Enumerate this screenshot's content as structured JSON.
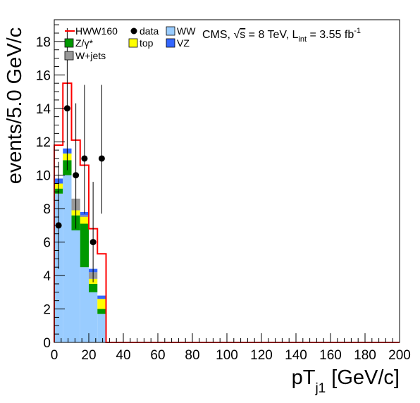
{
  "chart_data": {
    "type": "bar",
    "stacked": true,
    "bin_width": 5,
    "bin_edges_start": [
      0,
      5,
      10,
      15,
      20,
      25
    ],
    "x_range": [
      0,
      200
    ],
    "y_range": [
      0,
      19.3
    ],
    "x_ticks": [
      "0",
      "20",
      "40",
      "60",
      "80",
      "100",
      "120",
      "140",
      "160",
      "180",
      "200"
    ],
    "y_ticks": [
      "0",
      "2",
      "4",
      "6",
      "8",
      "10",
      "12",
      "14",
      "16",
      "18"
    ],
    "xlabel": {
      "main": "pT",
      "sub": "j1",
      "unit": " [GeV/c]"
    },
    "ylabel": "events/5.0 GeV/c",
    "annotation": {
      "prefix": "CMS, ",
      "sqrt_s": "s",
      "energy": " = 8 TeV, L",
      "lumi_sub": "int",
      "lumi_value": " = 3.55 fb",
      "lumi_sup": "-1"
    },
    "series": [
      {
        "name": "WW",
        "color": "#99ccff",
        "values": [
          8.9,
          10.0,
          6.7,
          4.5,
          3.0,
          1.7
        ]
      },
      {
        "name": "Z/γ*",
        "color": "#009900",
        "values": [
          0.3,
          0.9,
          0.9,
          2.6,
          0.5,
          0.3
        ]
      },
      {
        "name": "top",
        "color": "#ffff00",
        "values": [
          0.3,
          0.4,
          0.3,
          0.4,
          0.3,
          0.6
        ]
      },
      {
        "name": "W+jets",
        "color": "#999999",
        "values": [
          0.0,
          0.0,
          0.7,
          0.1,
          0.4,
          0.0
        ]
      },
      {
        "name": "VZ",
        "color": "#3366ff",
        "values": [
          0.3,
          0.3,
          0.0,
          0.2,
          0.2,
          0.2
        ]
      }
    ],
    "signal": {
      "name": "HWW160",
      "color": "#ff0000",
      "values": [
        11.8,
        15.5,
        12.1,
        10.6,
        6.8,
        5.3
      ]
    },
    "data_points": {
      "name": "data",
      "x": [
        2.5,
        7.5,
        12.5,
        17.5,
        22.5,
        27.5
      ],
      "y": [
        7,
        14,
        10,
        11,
        6,
        11
      ],
      "err_low": [
        2.6,
        3.7,
        3.2,
        3.3,
        2.4,
        3.3
      ],
      "err_high": [
        3.8,
        4.8,
        4.3,
        4.4,
        3.6,
        4.4
      ]
    }
  },
  "legend": [
    {
      "label": "HWW160",
      "kind": "line",
      "color": "#ff0000"
    },
    {
      "label": "data",
      "kind": "marker",
      "color": "#000000"
    },
    {
      "label": "WW",
      "kind": "box",
      "color": "#99ccff"
    },
    {
      "label": "Z/γ*",
      "kind": "box",
      "color": "#009900"
    },
    {
      "label": "top",
      "kind": "box",
      "color": "#ffff00"
    },
    {
      "label": "VZ",
      "kind": "box",
      "color": "#3366ff"
    },
    {
      "label": "W+jets",
      "kind": "box",
      "color": "#999999"
    }
  ]
}
